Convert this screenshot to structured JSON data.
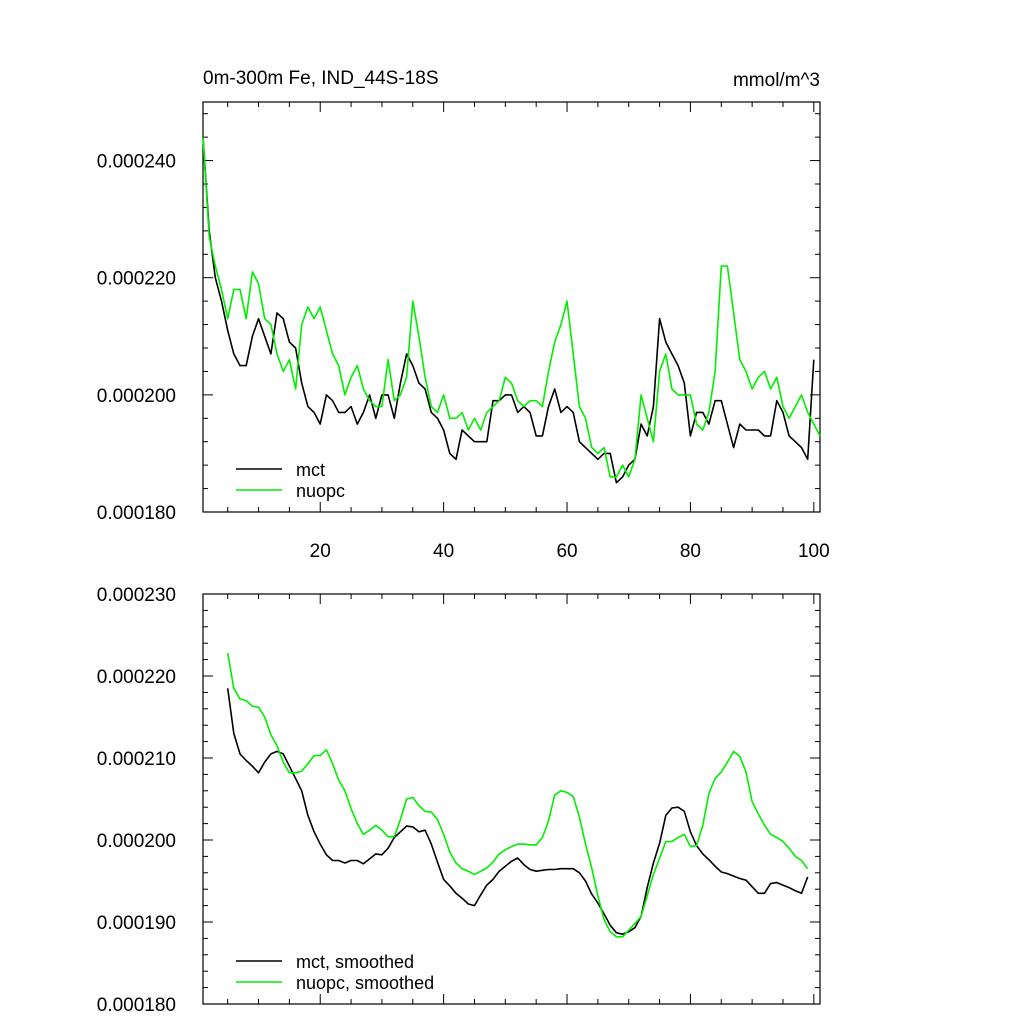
{
  "chart_data": [
    {
      "type": "line",
      "title": "0m-300m Fe, IND_44S-18S",
      "units": "mmol/m^3",
      "xlim": [
        1,
        101
      ],
      "ylim": [
        0.00018,
        0.00025
      ],
      "yticks": [
        {
          "value": 0.00018,
          "label": "0.000180"
        },
        {
          "value": 0.0002,
          "label": "0.000200"
        },
        {
          "value": 0.00022,
          "label": "0.000220"
        },
        {
          "value": 0.00024,
          "label": "0.000240"
        }
      ],
      "xticks": [
        {
          "value": 20,
          "label": "20"
        },
        {
          "value": 40,
          "label": "40"
        },
        {
          "value": 60,
          "label": "60"
        },
        {
          "value": 80,
          "label": "80"
        },
        {
          "value": 100,
          "label": "100"
        }
      ],
      "legend": "bottom-left",
      "series": [
        {
          "name": "mct",
          "color": "#000000",
          "x_start": 1,
          "values": [
            0.000244,
            0.000228,
            0.00022,
            0.000216,
            0.000211,
            0.000207,
            0.000205,
            0.000205,
            0.00021,
            0.000213,
            0.00021,
            0.000207,
            0.000214,
            0.000213,
            0.000209,
            0.000208,
            0.000202,
            0.000198,
            0.000197,
            0.000195,
            0.0002,
            0.000199,
            0.000197,
            0.000197,
            0.000198,
            0.000195,
            0.000197,
            0.0002,
            0.000196,
            0.0002,
            0.0002,
            0.000196,
            0.000202,
            0.000207,
            0.000205,
            0.000202,
            0.000201,
            0.000197,
            0.000196,
            0.000194,
            0.00019,
            0.000189,
            0.000194,
            0.000193,
            0.000192,
            0.000192,
            0.000192,
            0.000199,
            0.000199,
            0.0002,
            0.0002,
            0.000197,
            0.000198,
            0.000197,
            0.000193,
            0.000193,
            0.000198,
            0.000201,
            0.000197,
            0.000198,
            0.000197,
            0.000192,
            0.000191,
            0.00019,
            0.000189,
            0.00019,
            0.00019,
            0.000185,
            0.000186,
            0.000188,
            0.000189,
            0.000195,
            0.000193,
            0.000198,
            0.000213,
            0.000209,
            0.000207,
            0.000205,
            0.000202,
            0.000193,
            0.000197,
            0.000197,
            0.000195,
            0.000199,
            0.000199,
            0.000195,
            0.000191,
            0.000195,
            0.000194,
            0.000194,
            0.000194,
            0.000193,
            0.000193,
            0.000199,
            0.000197,
            0.000193,
            0.000192,
            0.000191,
            0.000189,
            0.000206
          ]
        },
        {
          "name": "nuopc",
          "color": "#00ee00",
          "x_start": 1,
          "values": [
            0.000244,
            0.000227,
            0.000222,
            0.000218,
            0.000213,
            0.000218,
            0.000218,
            0.000213,
            0.000221,
            0.000219,
            0.000213,
            0.000212,
            0.000207,
            0.000204,
            0.000206,
            0.000201,
            0.000212,
            0.000215,
            0.000213,
            0.000215,
            0.000211,
            0.000207,
            0.000205,
            0.0002,
            0.000203,
            0.000205,
            0.000201,
            0.000199,
            0.000198,
            0.000198,
            0.000206,
            0.000199,
            0.0002,
            0.000203,
            0.000216,
            0.00021,
            0.000203,
            0.000198,
            0.000197,
            0.0002,
            0.000196,
            0.000196,
            0.000197,
            0.000194,
            0.000196,
            0.000194,
            0.000197,
            0.000198,
            0.000199,
            0.000203,
            0.000202,
            0.000199,
            0.000198,
            0.000199,
            0.000199,
            0.000198,
            0.000204,
            0.000209,
            0.000212,
            0.000216,
            0.000207,
            0.000198,
            0.000196,
            0.000191,
            0.00019,
            0.000191,
            0.000186,
            0.000186,
            0.000188,
            0.000186,
            0.000189,
            0.0002,
            0.000196,
            0.000192,
            0.000204,
            0.000207,
            0.000201,
            0.0002,
            0.0002,
            0.0002,
            0.000195,
            0.000194,
            0.000197,
            0.000204,
            0.000222,
            0.000222,
            0.000214,
            0.000206,
            0.000204,
            0.000201,
            0.000203,
            0.000204,
            0.000201,
            0.000203,
            0.000198,
            0.000196,
            0.000198,
            0.0002,
            0.000197,
            0.000195,
            0.000193
          ]
        }
      ]
    },
    {
      "type": "line",
      "ylim": [
        0.00018,
        0.00023
      ],
      "xlim": [
        1,
        101
      ],
      "yticks": [
        {
          "value": 0.00018,
          "label": "0.000180"
        },
        {
          "value": 0.00019,
          "label": "0.000190"
        },
        {
          "value": 0.0002,
          "label": "0.000200"
        },
        {
          "value": 0.00021,
          "label": "0.000210"
        },
        {
          "value": 0.00022,
          "label": "0.000220"
        },
        {
          "value": 0.00023,
          "label": "0.000230"
        }
      ],
      "xticks": [
        {
          "value": 20,
          "label": ""
        },
        {
          "value": 40,
          "label": ""
        },
        {
          "value": 60,
          "label": ""
        },
        {
          "value": 80,
          "label": ""
        },
        {
          "value": 100,
          "label": ""
        }
      ],
      "legend": "bottom-left",
      "series": [
        {
          "name": "mct, smoothed",
          "color": "#000000",
          "x_start": 5,
          "values": [
            0.0002185,
            0.000213,
            0.0002105,
            0.0002097,
            0.000209,
            0.0002082,
            0.0002095,
            0.0002105,
            0.0002108,
            0.0002105,
            0.000209,
            0.0002075,
            0.000206,
            0.000203,
            0.000201,
            0.0001995,
            0.0001982,
            0.0001975,
            0.0001975,
            0.0001972,
            0.0001975,
            0.0001975,
            0.0001971,
            0.0001977,
            0.0001983,
            0.0001982,
            0.000199,
            0.0002003,
            0.000201,
            0.0002017,
            0.0002016,
            0.000201,
            0.0002012,
            0.0001995,
            0.0001973,
            0.0001952,
            0.0001944,
            0.0001935,
            0.0001929,
            0.0001922,
            0.000192,
            0.0001933,
            0.0001945,
            0.0001952,
            0.0001962,
            0.0001968,
            0.0001974,
            0.0001978,
            0.000197,
            0.0001964,
            0.0001962,
            0.0001963,
            0.0001964,
            0.0001964,
            0.0001965,
            0.0001965,
            0.0001965,
            0.000196,
            0.000195,
            0.0001934,
            0.0001923,
            0.000191,
            0.0001896,
            0.0001887,
            0.0001885,
            0.0001888,
            0.0001893,
            0.0001907,
            0.0001942,
            0.0001972,
            0.0001996,
            0.000203,
            0.0002039,
            0.000204,
            0.0002035,
            0.000201,
            0.0001993,
            0.0001983,
            0.0001976,
            0.0001968,
            0.0001961,
            0.0001959,
            0.0001956,
            0.0001953,
            0.0001951,
            0.0001943,
            0.0001935,
            0.0001935,
            0.0001947,
            0.0001948,
            0.0001945,
            0.0001942,
            0.0001938,
            0.0001935,
            0.0001955
          ]
        },
        {
          "name": "nuopc, smoothed",
          "color": "#00ee00",
          "x_start": 5,
          "values": [
            0.0002228,
            0.0002185,
            0.0002172,
            0.000217,
            0.0002163,
            0.0002162,
            0.000215,
            0.0002128,
            0.0002115,
            0.0002095,
            0.0002082,
            0.0002082,
            0.0002084,
            0.0002093,
            0.0002103,
            0.0002103,
            0.000211,
            0.0002093,
            0.0002073,
            0.000206,
            0.0002038,
            0.000202,
            0.0002007,
            0.0002012,
            0.0002018,
            0.0002012,
            0.0002004,
            0.0002004,
            0.0002025,
            0.000205,
            0.0002052,
            0.0002042,
            0.0002035,
            0.0002034,
            0.0002025,
            0.0002007,
            0.0001985,
            0.0001972,
            0.0001965,
            0.0001962,
            0.0001958,
            0.0001962,
            0.0001966,
            0.0001973,
            0.0001983,
            0.0001988,
            0.0001992,
            0.0001995,
            0.0001995,
            0.0001994,
            0.0001994,
            0.0002003,
            0.0002023,
            0.0002055,
            0.000206,
            0.0002058,
            0.0002053,
            0.0002028,
            0.0001995,
            0.0001966,
            0.0001932,
            0.0001903,
            0.0001888,
            0.0001882,
            0.0001882,
            0.000189,
            0.0001898,
            0.0001907,
            0.0001932,
            0.0001958,
            0.0001978,
            0.0001998,
            0.0001998,
            0.0002003,
            0.0002007,
            0.0001992,
            0.0001993,
            0.0002018,
            0.0002057,
            0.0002075,
            0.0002083,
            0.0002095,
            0.0002108,
            0.0002102,
            0.0002083,
            0.0002047,
            0.0002032,
            0.0002018,
            0.0002007,
            0.0002003,
            0.0001998,
            0.000199,
            0.000198,
            0.0001975,
            0.0001965
          ]
        }
      ]
    }
  ]
}
